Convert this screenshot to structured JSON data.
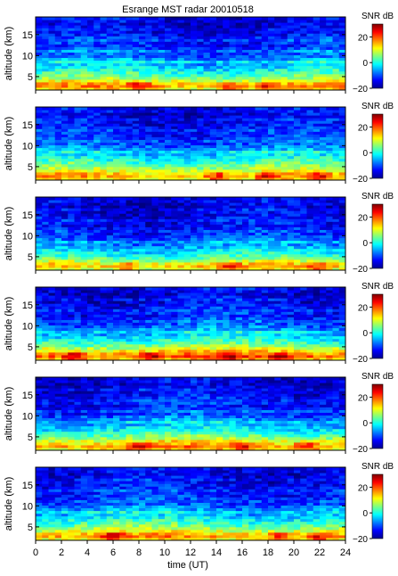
{
  "figure": {
    "title": "Esrange MST radar 20010518",
    "xlabel": "time (UT)",
    "ylabel": "altitude (km)",
    "colorbar_label": "SNR dB"
  },
  "chart_data": {
    "type": "heatmap",
    "title": "Esrange MST radar 20010518",
    "xlabel": "time (UT)",
    "ylabel": "altitude (km)",
    "xlim": [
      0,
      24
    ],
    "ylim": [
      1.8,
      19.2
    ],
    "x_ticks": [
      0,
      2,
      4,
      6,
      8,
      10,
      12,
      14,
      16,
      18,
      20,
      22,
      24
    ],
    "y_ticks": [
      5,
      10,
      15
    ],
    "x_tick_labels": [
      "0",
      "2",
      "4",
      "6",
      "8",
      "10",
      "12",
      "14",
      "16",
      "18",
      "20",
      "22",
      "24"
    ],
    "y_tick_labels": [
      "5",
      "10",
      "15"
    ],
    "color_range": [
      -20,
      30
    ],
    "colorbar_ticks": [
      20,
      0,
      -20
    ],
    "colorbar_tick_labels": [
      "20",
      "0",
      "−20"
    ],
    "colorbar_label": "SNR dB",
    "colormap": "jet",
    "x_bins": 48,
    "altitude_bins": 27,
    "num_panels": 6,
    "panels": [
      {
        "base_profile": [
          12,
          16,
          14,
          10,
          6,
          3,
          1,
          -1,
          -3,
          -5,
          -2,
          -6,
          -9,
          -10,
          -8,
          -11,
          -13,
          -12,
          -10,
          -12,
          -14,
          -15,
          -13,
          -15,
          -16,
          -15,
          -14
        ],
        "hot_hours": [
          8,
          15,
          18
        ]
      },
      {
        "base_profile": [
          12,
          15,
          13,
          10,
          7,
          4,
          2,
          0,
          -2,
          -4,
          -2,
          -6,
          -8,
          -10,
          -9,
          -11,
          -12,
          -12,
          -11,
          -13,
          -14,
          -14,
          -13,
          -15,
          -15,
          -14,
          -14
        ],
        "hot_hours": [
          14,
          18,
          22
        ]
      },
      {
        "base_profile": [
          10,
          14,
          12,
          8,
          4,
          1,
          -1,
          -3,
          -5,
          -7,
          -5,
          -9,
          -11,
          -12,
          -11,
          -13,
          -14,
          -14,
          -12,
          -14,
          -15,
          -15,
          -14,
          -16,
          -16,
          -15,
          -15
        ],
        "hot_hours": [
          7,
          15,
          22
        ]
      },
      {
        "base_profile": [
          15,
          20,
          17,
          13,
          9,
          5,
          2,
          0,
          -2,
          -4,
          -2,
          -6,
          -8,
          -10,
          -9,
          -11,
          -13,
          -12,
          -11,
          -13,
          -14,
          -15,
          -13,
          -15,
          -16,
          -15,
          -14
        ],
        "hot_hours": [
          3,
          9,
          15,
          19
        ]
      },
      {
        "base_profile": [
          13,
          17,
          14,
          11,
          7,
          4,
          1,
          -1,
          -3,
          -5,
          -3,
          -7,
          -9,
          -11,
          -9,
          -12,
          -13,
          -12,
          -11,
          -13,
          -14,
          -15,
          -13,
          -15,
          -16,
          -15,
          -15
        ],
        "hot_hours": [
          8,
          16,
          21
        ]
      },
      {
        "base_profile": [
          12,
          16,
          14,
          10,
          7,
          4,
          2,
          0,
          -2,
          -4,
          -2,
          -6,
          -8,
          -10,
          -9,
          -11,
          -12,
          -12,
          -11,
          -13,
          -14,
          -14,
          -13,
          -15,
          -15,
          -14,
          -14
        ],
        "hot_hours": [
          6,
          19,
          22
        ]
      }
    ]
  }
}
